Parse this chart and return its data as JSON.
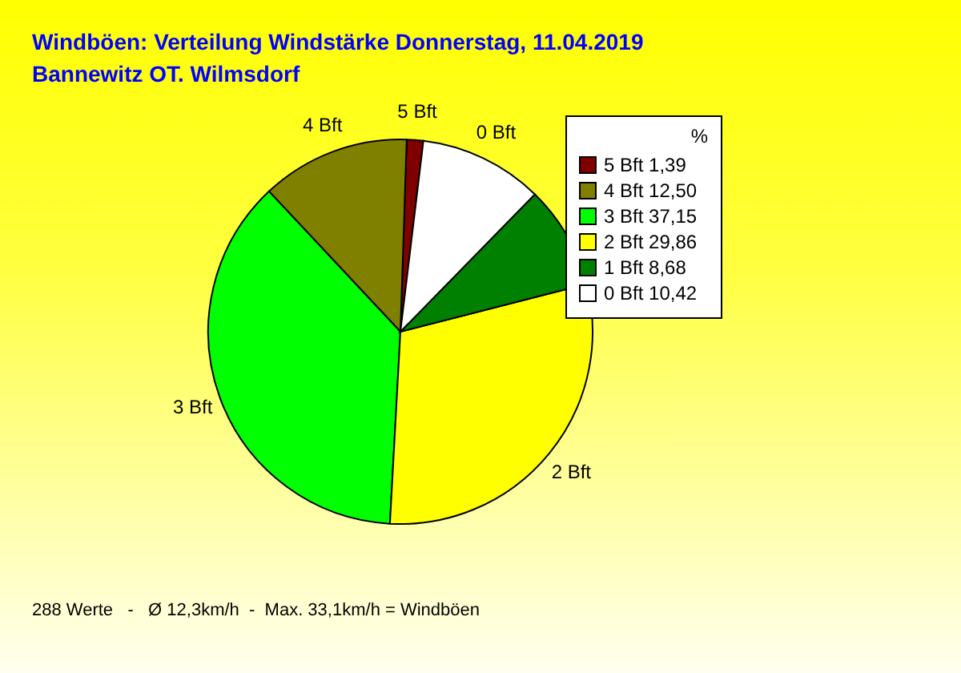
{
  "chart_data": {
    "type": "pie",
    "title": "Windböen: Verteilung Windstärke  Donnerstag, 11.04.2019",
    "subtitle": "Bannewitz OT. Wilmsdorf",
    "categories": [
      "5 Bft",
      "4 Bft",
      "3 Bft",
      "2 Bft",
      "1 Bft",
      "0 Bft"
    ],
    "values": [
      1.39,
      12.5,
      37.15,
      29.86,
      8.68,
      10.42
    ],
    "value_labels": [
      "1,39",
      "12,50",
      "37,15",
      "29,86",
      "8,68",
      "10,42"
    ],
    "colors": [
      "#800000",
      "#808000",
      "#00ff00",
      "#ffff00",
      "#008000",
      "#ffffff"
    ],
    "legend_title": "%",
    "legend": "top right",
    "annotations": [
      "288 Werte   -   Ø 12,3km/h  -  Max. 33,1km/h = Windböen"
    ]
  }
}
